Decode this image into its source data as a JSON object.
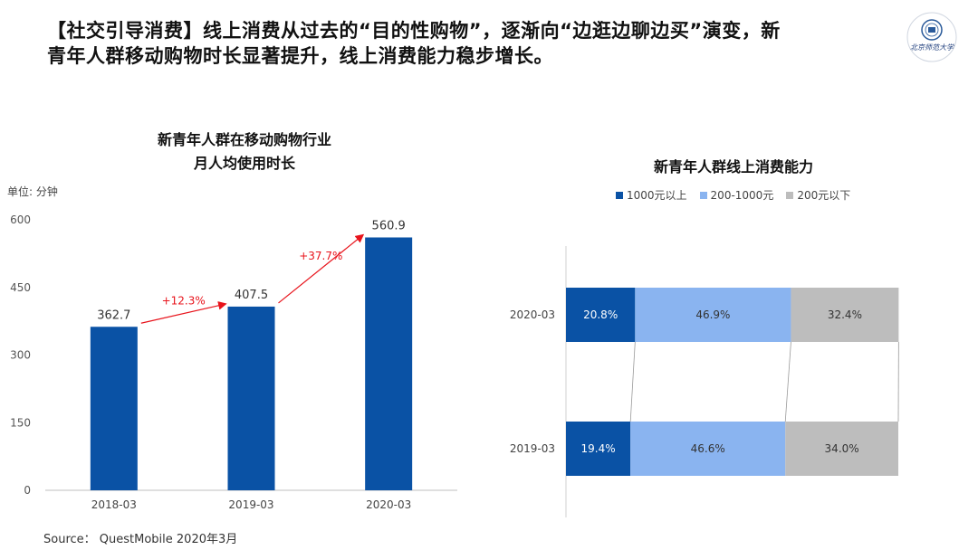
{
  "header": {
    "title_line1": "【社交引导消费】线上消费从过去的“目的性购物”，逐渐向“边逛边聊边买”演变，新",
    "title_line2": "青年人群移动购物时长显著提升，线上消费能力稳步增长。"
  },
  "logo": {
    "text": "北京师范大学"
  },
  "left_chart": {
    "title_line1": "新青年人群在移动购物行业",
    "title_line2": "月人均使用时长",
    "unit": "单位: 分钟"
  },
  "right_chart": {
    "title": "新青年人群线上消费能力"
  },
  "source": "Source： QuestMobile 2020年3月",
  "colors": {
    "dark_blue": "#0a52a5",
    "light_blue": "#8ab4f0",
    "gray": "#bdbdbd",
    "red": "#e8141c"
  },
  "chart_data": [
    {
      "type": "bar",
      "categories": [
        "2018-03",
        "2019-03",
        "2020-03"
      ],
      "values": [
        362.7,
        407.5,
        560.9
      ],
      "data_labels": [
        "362.7",
        "407.5",
        "560.9"
      ],
      "growth_annotations": [
        "+12.3%",
        "+37.7%"
      ],
      "ylim": [
        0,
        600
      ],
      "yticks": [
        0,
        150,
        300,
        450,
        600
      ]
    },
    {
      "type": "bar",
      "orientation": "horizontal-stacked-100",
      "categories": [
        "2020-03",
        "2019-03"
      ],
      "series": [
        {
          "name": "1000元以上",
          "values": [
            20.8,
            19.4
          ],
          "labels": [
            "20.8%",
            "19.4%"
          ]
        },
        {
          "name": "200-1000元",
          "values": [
            46.9,
            46.6
          ],
          "labels": [
            "46.9%",
            "46.6%"
          ]
        },
        {
          "name": "200元以下",
          "values": [
            32.4,
            34.0
          ],
          "labels": [
            "32.4%",
            "34.0%"
          ]
        }
      ],
      "legend_position": "top"
    }
  ]
}
